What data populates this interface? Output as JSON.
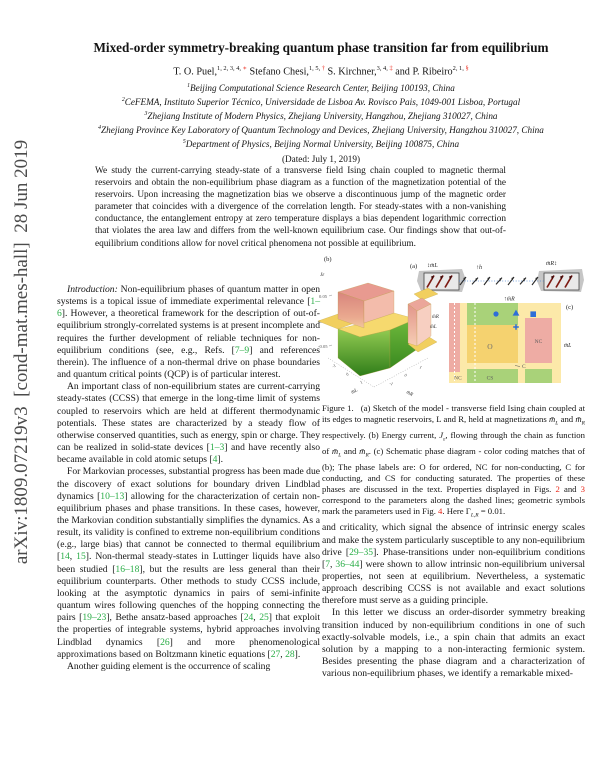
{
  "theme": {
    "cite_green": "#2aad47",
    "ref_red": "#ea2517",
    "marker_blue": "#2e6ed8",
    "pink": "#eeaca4",
    "pale_yellow": "#fce9a9",
    "bright_yellow": "#f5d26f",
    "green": "#a9d279",
    "sidebar_gray": "#4b4b4b"
  },
  "sidebar": {
    "text": "arXiv:1809.07219v3  [cond-mat.mes-hall]  28 Jun 2019"
  },
  "header": {
    "title": "Mixed-order symmetry-breaking quantum phase transition far from equilibrium",
    "authors": [
      {
        "t": "T. O. Puel,"
      },
      {
        "t": "1, 2, 3, 4, ",
        "k": "sup"
      },
      {
        "t": "∗",
        "k": "supred"
      },
      {
        "t": " Stefano Chesi,"
      },
      {
        "t": "1, 5, ",
        "k": "sup"
      },
      {
        "t": "†",
        "k": "supred"
      },
      {
        "t": " S. Kirchner,"
      },
      {
        "t": "3, 4, ",
        "k": "sup"
      },
      {
        "t": "‡",
        "k": "supred"
      },
      {
        "t": " and P. Ribeiro"
      },
      {
        "t": "2, 1, ",
        "k": "sup"
      },
      {
        "t": "§",
        "k": "supred"
      }
    ],
    "affiliations": [
      [
        {
          "t": "1",
          "k": "sup"
        },
        {
          "t": "Beijing Computational Science Research Center, Beijing 100193, China"
        }
      ],
      [
        {
          "t": "2",
          "k": "sup"
        },
        {
          "t": "CeFEMA, Instituto Superior Técnico, Universidade de Lisboa Av. Rovisco Pais, 1049-001 Lisboa, Portugal"
        }
      ],
      [
        {
          "t": "3",
          "k": "sup"
        },
        {
          "t": "Zhejiang Institute of Modern Physics, Zhejiang University, Hangzhou, Zhejiang 310027, China"
        }
      ],
      [
        {
          "t": "4",
          "k": "sup"
        },
        {
          "t": "Zhejiang Province Key Laboratory of Quantum Technology and Devices, Zhejiang University, Hangzhou 310027, China"
        }
      ],
      [
        {
          "t": "5",
          "k": "sup"
        },
        {
          "t": "Department of Physics, Beijing Normal University, Beijing 100875, China"
        }
      ]
    ],
    "date": "(Dated: July 1, 2019)"
  },
  "abstract": {
    "text": "We study the current-carrying steady-state of a transverse field Ising chain coupled to magnetic thermal reservoirs and obtain the non-equilibrium phase diagram as a function of the magnetization potential of the reservoirs. Upon increasing the magnetization bias we observe a discontinuous jump of the magnetic order parameter that coincides with a divergence of the correlation length. For steady-states with a non-vanishing conductance, the entanglement entropy at zero temperature displays a bias dependent logarithmic correction that violates the area law and differs from the well-known equilibrium case. Our findings show that out-of-equilibrium conditions allow for novel critical phenomena not possible at equilibrium."
  },
  "columns": {
    "left": [
      {
        "segments": [
          {
            "t": "Introduction:",
            "k": "em"
          },
          {
            "t": " Non-equilibrium phases of quantum matter in open systems is a topical issue of immediate experimental relevance ["
          },
          {
            "t": "1–6",
            "k": "cite"
          },
          {
            "t": "]. However, a theoretical framework for the description of out-of-equilibrium strongly-correlated systems is at present incomplete and requires the further development of reliable techniques for non-equilibrium conditions (see, e.g., Refs. ["
          },
          {
            "t": "7–9",
            "k": "cite"
          },
          {
            "t": "] and references therein). The influence of a non-thermal drive on phase boundaries and quantum critical points (QCP) is of particular interest."
          }
        ]
      },
      {
        "segments": [
          {
            "t": "An important class of non-equilibrium states are current-carrying steady-states (CCSS) that emerge in the long-time limit of systems coupled to reservoirs which are held at different thermodynamic potentials. These states are characterized by a steady flow of otherwise conserved quantities, such as energy, spin or charge. They can be realized in solid-state devices ["
          },
          {
            "t": "1–3",
            "k": "cite"
          },
          {
            "t": "] and have recently also became available in cold atomic setups ["
          },
          {
            "t": "4",
            "k": "cite"
          },
          {
            "t": "]."
          }
        ]
      },
      {
        "segments": [
          {
            "t": "For Markovian processes, substantial progress has been made due the discovery of exact solutions for boundary driven Lindblad dynamics ["
          },
          {
            "t": "10–13",
            "k": "cite"
          },
          {
            "t": "] allowing for the characterization of certain non-equilibrium phases and phase transitions. In these cases, however, the Markovian condition substantially simplifies the dynamics. As a result, its validity is confined to extreme non-equilibrium conditions (e.g., large bias) that cannot be connected to thermal equilibrium ["
          },
          {
            "t": "14",
            "k": "cite"
          },
          {
            "t": ", "
          },
          {
            "t": "15",
            "k": "cite"
          },
          {
            "t": "]. Non-thermal steady-states in Luttinger liquids have also been studied ["
          },
          {
            "t": "16–18",
            "k": "cite"
          },
          {
            "t": "], but the results are less general than their equilibrium counterparts. Other methods to study CCSS include, looking at the asymptotic dynamics in pairs of semi-infinite quantum wires following quenches of the hopping connecting the pairs ["
          },
          {
            "t": "19–23",
            "k": "cite"
          },
          {
            "t": "], Bethe ansatz-based approaches ["
          },
          {
            "t": "24",
            "k": "cite"
          },
          {
            "t": ", "
          },
          {
            "t": "25",
            "k": "cite"
          },
          {
            "t": "] that exploit the properties of integrable systems, hybrid approaches involving Lindblad dynamics ["
          },
          {
            "t": "26",
            "k": "cite"
          },
          {
            "t": "] and more phenomenological approximations based on Boltzmann kinetic equations ["
          },
          {
            "t": "27",
            "k": "cite"
          },
          {
            "t": ", "
          },
          {
            "t": "28",
            "k": "cite"
          },
          {
            "t": "]."
          }
        ]
      },
      {
        "segments": [
          {
            "t": "Another guiding element is the occurrence of scaling"
          }
        ]
      }
    ],
    "right": [
      {
        "segments": [
          {
            "t": "and criticality, which signal the absence of intrinsic energy scales and make the system particularly susceptible to any non-equilibrium drive ["
          },
          {
            "t": "29–35",
            "k": "cite"
          },
          {
            "t": "]. Phase-transitions under non-equilibrium conditions ["
          },
          {
            "t": "7",
            "k": "cite"
          },
          {
            "t": ", "
          },
          {
            "t": "36–44",
            "k": "cite"
          },
          {
            "t": "] were shown to allow intrinsic non-equilibrium universal properties, not seen at equilibrium. Nevertheless, a systematic approach describing CCSS is not available and exact solutions therefore must serve as a guiding principle."
          }
        ]
      },
      {
        "segments": [
          {
            "t": "In this letter we discuss an order-disorder symmetry breaking transition induced by non-equilibrium conditions in one of such exactly-solvable models, i.e., a spin chain that admits an exact solution by a mapping to a non-interacting fermionic system.  Besides presenting the phase diagram and a characterization of various non-equilibrium phases, we identify a remarkable mixed-"
          }
        ]
      }
    ]
  },
  "figure": {
    "panel_a": {
      "label": "(a)",
      "left_reservoir": "↕m̄L",
      "field": "↑h",
      "right_reservoir": "m̄R↕"
    },
    "panel_b": {
      "label": "(b)",
      "z_label": "Jε",
      "z_ticks": [
        "0.05",
        "0.00",
        "-0.05"
      ],
      "x_ticks": [
        "-1",
        "0",
        "1"
      ],
      "x_axis": "m̄L",
      "y_axis": "m̄R",
      "corner_axis_top": "m̄R",
      "corner_axis_bottom": "m̄L"
    },
    "panel_c": {
      "label": "(c)",
      "top_axis": "↑m̄R",
      "right_axis": "m̄L",
      "o": "O",
      "nc_right": "NC",
      "nc_left": "NC",
      "cs": "CS",
      "c": "C"
    },
    "caption": [
      {
        "t": "Figure 1.",
        "k": "figlabel"
      },
      {
        "t": "(a) Sketch of the model - transverse field Ising chain coupled at its edges to magnetic reservoirs, L and R, held at magnetizations "
      },
      {
        "t": "m̄",
        "k": "mit"
      },
      {
        "t": "L",
        "k": "sub"
      },
      {
        "t": " and "
      },
      {
        "t": "m̄",
        "k": "mit"
      },
      {
        "t": "R",
        "k": "sub"
      },
      {
        "t": " respectively. (b) Energy current, "
      },
      {
        "t": "J",
        "k": "mit"
      },
      {
        "t": "ε",
        "k": "sub"
      },
      {
        "t": ", flowing through the chain as function of "
      },
      {
        "t": "m̄",
        "k": "mit"
      },
      {
        "t": "L",
        "k": "sub"
      },
      {
        "t": " and "
      },
      {
        "t": "m̄",
        "k": "mit"
      },
      {
        "t": "R",
        "k": "sub"
      },
      {
        "t": ". (c) Schematic phase diagram - color coding matches that of (b); The phase labels are: O for ordered, NC for non-conducting, C for conducting, and CS for conducting saturated. The properties of these phases are discussed in the text. Properties displayed in Figs. "
      },
      {
        "t": "2",
        "k": "figref"
      },
      {
        "t": " and "
      },
      {
        "t": "3",
        "k": "figref"
      },
      {
        "t": " correspond to the parameters along the dashed lines; geometric symbols mark the parameters used in Fig. "
      },
      {
        "t": "4",
        "k": "figref"
      },
      {
        "t": ". Here Γ"
      },
      {
        "t": "L,R",
        "k": "sub"
      },
      {
        "t": " = 0.01."
      }
    ]
  }
}
